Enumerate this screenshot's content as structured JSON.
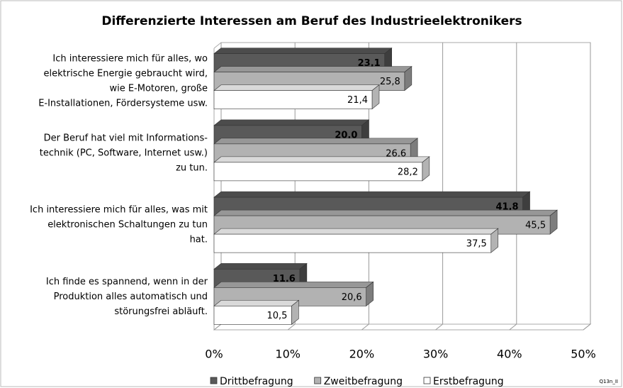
{
  "chart_data": {
    "type": "bar",
    "orientation": "horizontal",
    "title": "Differenzierte Interessen am Beruf des Industrieelektronikers",
    "categories": [
      [
        "Ich interessiere mich für alles, wo",
        "elektrische Energie gebraucht wird,",
        "wie E-Motoren, große",
        "E-Installationen, Fördersysteme usw."
      ],
      [
        "Der Beruf hat viel mit Informations-",
        "technik  (PC, Software, Internet usw.)",
        "zu tun."
      ],
      [
        "Ich interessiere mich für alles, was mit",
        "elektronischen Schaltungen zu tun",
        "hat."
      ],
      [
        "Ich finde es spannend,  wenn in der",
        "Produktion alles automatisch und",
        "störungsfrei abläuft."
      ]
    ],
    "series": [
      {
        "name": "Drittbefragung",
        "color": "#595959",
        "values": [
          23.1,
          20.0,
          41.8,
          11.6
        ],
        "value_labels": [
          "23,1",
          "20,0",
          "41,8",
          "11,6"
        ]
      },
      {
        "name": "Zweitbefragung",
        "color": "#b2b2b2",
        "values": [
          25.8,
          26.6,
          45.5,
          20.6
        ],
        "value_labels": [
          "25,8",
          "26,6",
          "45,5",
          "20,6"
        ]
      },
      {
        "name": "Erstbefragung",
        "color": "#ffffff",
        "values": [
          21.4,
          28.2,
          37.5,
          10.5
        ],
        "value_labels": [
          "21,4",
          "28,2",
          "37,5",
          "10,5"
        ]
      }
    ],
    "xlim": [
      0,
      50
    ],
    "xticks": [
      {
        "value": 0,
        "label": "0%"
      },
      {
        "value": 10,
        "label": "10%"
      },
      {
        "value": 20,
        "label": "20%"
      },
      {
        "value": 30,
        "label": "30%"
      },
      {
        "value": 40,
        "label": "40%"
      },
      {
        "value": 50,
        "label": "50%"
      }
    ],
    "grid": true,
    "legend": "bottom",
    "note": "Q13n_II"
  }
}
